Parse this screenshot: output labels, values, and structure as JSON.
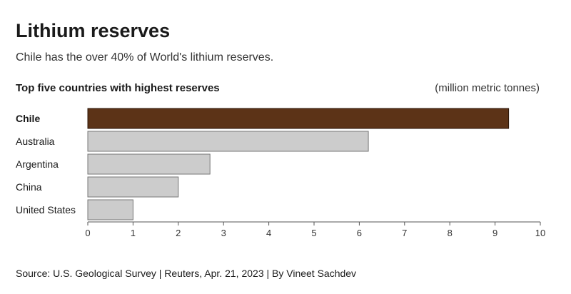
{
  "header": {
    "title": "Lithium reserves",
    "subtitle": "Chile has the over 40% of World's lithium reserves.",
    "chart_heading": "Top five countries with highest reserves",
    "units": "(million metric tonnes)"
  },
  "chart_data": {
    "type": "bar",
    "orientation": "horizontal",
    "title": "Top five countries with highest reserves",
    "xlabel": "(million metric tonnes)",
    "ylabel": "",
    "categories": [
      "Chile",
      "Australia",
      "Argentina",
      "China",
      "United States"
    ],
    "values": [
      9.3,
      6.2,
      2.7,
      2.0,
      1.0
    ],
    "highlight_category": "Chile",
    "xlim": [
      0,
      10
    ],
    "xticks": [
      0,
      1,
      2,
      3,
      4,
      5,
      6,
      7,
      8,
      9,
      10
    ],
    "grid": false,
    "colors": {
      "highlight": "#5c3317",
      "default": "#cccccc",
      "border": "#777777"
    }
  },
  "footer": {
    "source": "Source: U.S. Geological Survey | Reuters, Apr. 21, 2023 | By Vineet Sachdev"
  }
}
